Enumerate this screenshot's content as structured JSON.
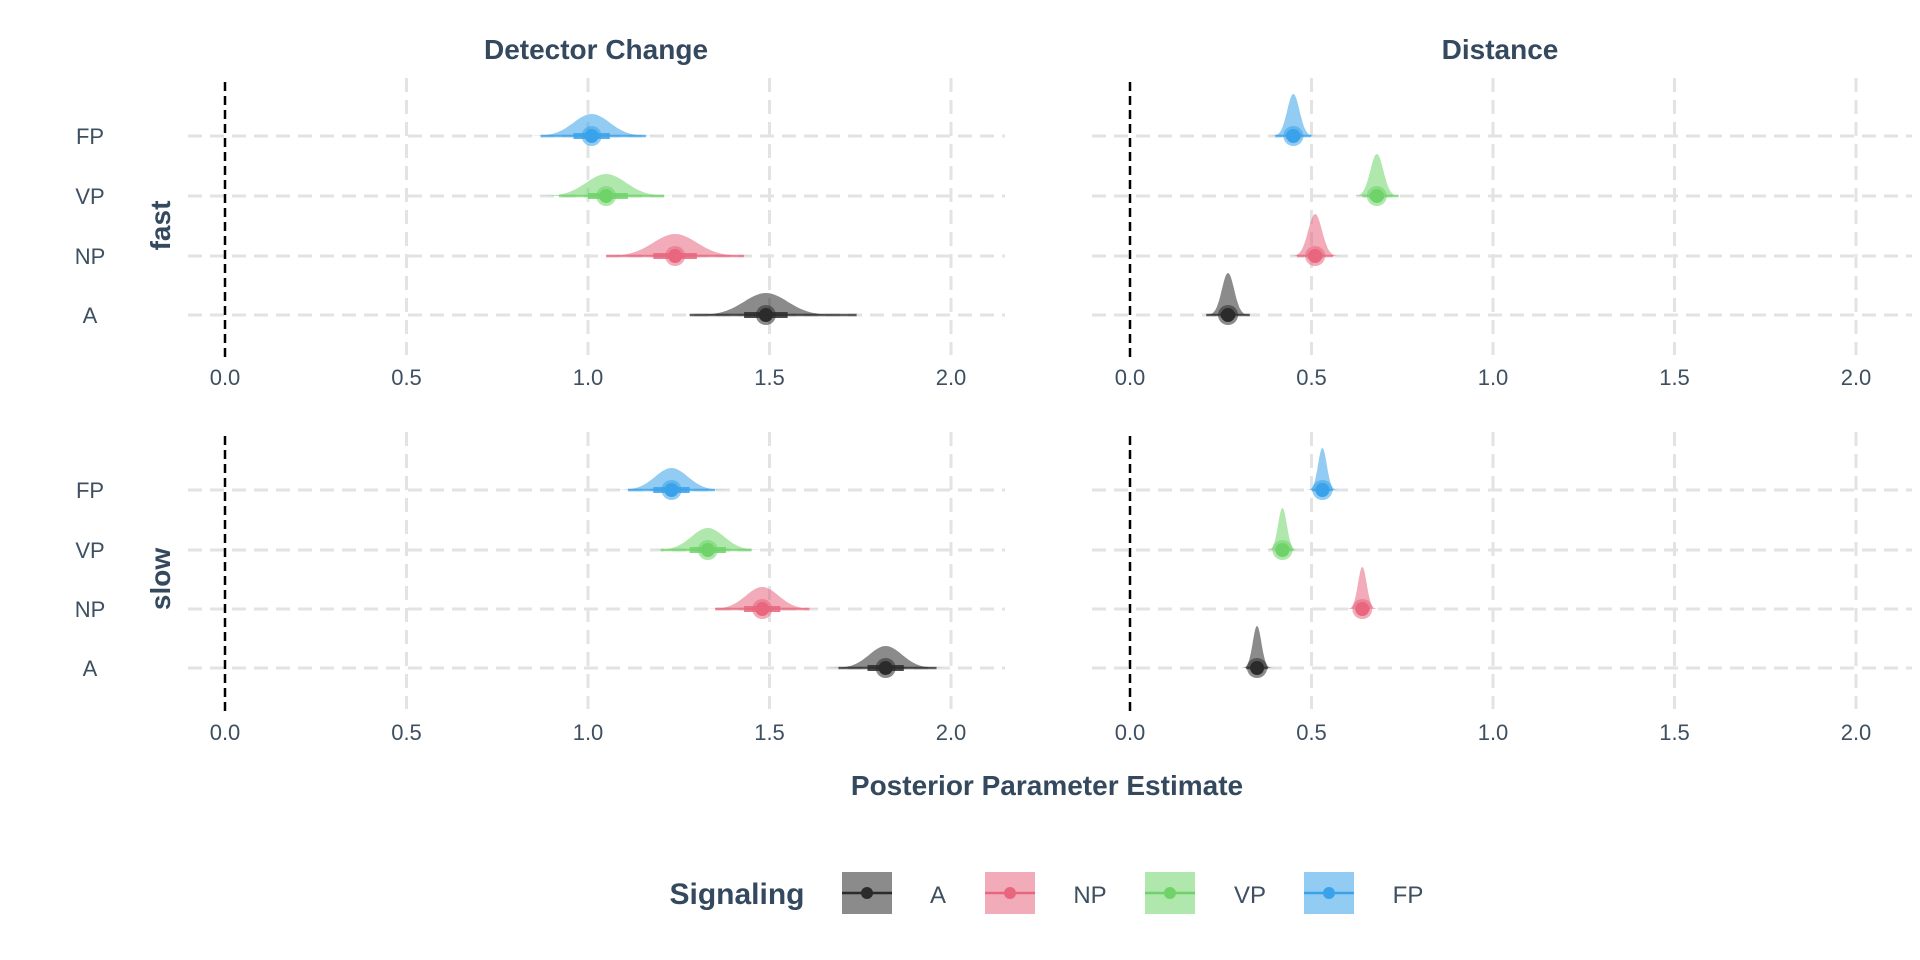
{
  "chart_data": {
    "type": "halfeye",
    "title": "",
    "xlabel": "Posterior Parameter Estimate",
    "xlim": [
      -0.1,
      2.15
    ],
    "x_ticks": [
      0.0,
      0.5,
      1.0,
      1.5,
      2.0
    ],
    "x_tick_labels": [
      "0.0",
      "0.5",
      "1.0",
      "1.5",
      "2.0"
    ],
    "reference_line_x": 0,
    "grid": true,
    "facet_columns": [
      "Detector Change",
      "Distance"
    ],
    "facet_rows": [
      "fast",
      "slow"
    ],
    "categories": [
      "FP",
      "VP",
      "NP",
      "A"
    ],
    "legend": {
      "title": "Signaling",
      "position": "bottom",
      "entries": [
        "A",
        "NP",
        "VP",
        "FP"
      ]
    },
    "colors": {
      "A": "#2b2b2b",
      "NP": "#e8667e",
      "VP": "#6fd36a",
      "FP": "#39a2ea"
    },
    "panels": [
      {
        "column": "Detector Change",
        "row": "fast",
        "estimates": [
          {
            "group": "FP",
            "median": 1.01,
            "sd": 0.05,
            "ci66": [
              0.96,
              1.06
            ],
            "ci95": [
              0.87,
              1.16
            ]
          },
          {
            "group": "VP",
            "median": 1.05,
            "sd": 0.055,
            "ci66": [
              1.0,
              1.11
            ],
            "ci95": [
              0.92,
              1.21
            ]
          },
          {
            "group": "NP",
            "median": 1.24,
            "sd": 0.06,
            "ci66": [
              1.18,
              1.3
            ],
            "ci95": [
              1.05,
              1.43
            ]
          },
          {
            "group": "A",
            "median": 1.49,
            "sd": 0.06,
            "ci66": [
              1.43,
              1.55
            ],
            "ci95": [
              1.28,
              1.74
            ]
          }
        ]
      },
      {
        "column": "Distance",
        "row": "fast",
        "estimates": [
          {
            "group": "FP",
            "median": 0.45,
            "sd": 0.017,
            "ci66": [
              0.43,
              0.47
            ],
            "ci95": [
              0.4,
              0.5
            ]
          },
          {
            "group": "VP",
            "median": 0.68,
            "sd": 0.018,
            "ci66": [
              0.66,
              0.7
            ],
            "ci95": [
              0.64,
              0.74
            ]
          },
          {
            "group": "NP",
            "median": 0.51,
            "sd": 0.019,
            "ci66": [
              0.49,
              0.53
            ],
            "ci95": [
              0.46,
              0.56
            ]
          },
          {
            "group": "A",
            "median": 0.27,
            "sd": 0.017,
            "ci66": [
              0.25,
              0.29
            ],
            "ci95": [
              0.21,
              0.33
            ]
          }
        ]
      },
      {
        "column": "Detector Change",
        "row": "slow",
        "estimates": [
          {
            "group": "FP",
            "median": 1.23,
            "sd": 0.045,
            "ci66": [
              1.18,
              1.28
            ],
            "ci95": [
              1.11,
              1.35
            ]
          },
          {
            "group": "VP",
            "median": 1.33,
            "sd": 0.045,
            "ci66": [
              1.28,
              1.38
            ],
            "ci95": [
              1.2,
              1.45
            ]
          },
          {
            "group": "NP",
            "median": 1.48,
            "sd": 0.045,
            "ci66": [
              1.43,
              1.53
            ],
            "ci95": [
              1.35,
              1.61
            ]
          },
          {
            "group": "A",
            "median": 1.82,
            "sd": 0.045,
            "ci66": [
              1.77,
              1.87
            ],
            "ci95": [
              1.69,
              1.96
            ]
          }
        ]
      },
      {
        "column": "Distance",
        "row": "slow",
        "estimates": [
          {
            "group": "FP",
            "median": 0.53,
            "sd": 0.012,
            "ci66": [
              0.52,
              0.54
            ],
            "ci95": [
              0.5,
              0.56
            ]
          },
          {
            "group": "VP",
            "median": 0.42,
            "sd": 0.012,
            "ci66": [
              0.41,
              0.43
            ],
            "ci95": [
              0.4,
              0.45
            ]
          },
          {
            "group": "NP",
            "median": 0.64,
            "sd": 0.012,
            "ci66": [
              0.63,
              0.65
            ],
            "ci95": [
              0.62,
              0.66
            ]
          },
          {
            "group": "A",
            "median": 0.35,
            "sd": 0.012,
            "ci66": [
              0.34,
              0.36
            ],
            "ci95": [
              0.32,
              0.38
            ]
          }
        ]
      }
    ]
  }
}
